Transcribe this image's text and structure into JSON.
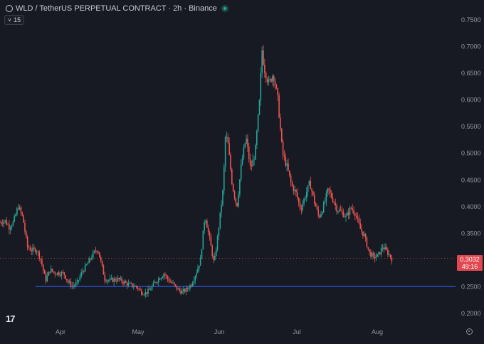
{
  "header": {
    "title": "WLD / TetherUS PERPETUAL CONTRACT · 2h · Binance",
    "indicator_count": "15"
  },
  "price_tag": {
    "price": "0.3032",
    "countdown": "49:16"
  },
  "logo_text": "17",
  "colors": {
    "background": "#171a22",
    "up": "#26a69a",
    "down": "#ef5350",
    "support_line": "#2962ff",
    "last_price": "#e0474f",
    "axis_text": "#9598a1"
  },
  "chart_data": {
    "type": "candlestick",
    "symbol": "WLD / TetherUS PERPETUAL CONTRACT",
    "interval": "2h",
    "exchange": "Binance",
    "x_tick_labels": [
      "Apr",
      "May",
      "Jun",
      "Jul",
      "Aug"
    ],
    "y_tick_labels": [
      "0.2000",
      "0.2500",
      "0.3000",
      "0.3500",
      "0.4000",
      "0.4500",
      "0.5000",
      "0.5500",
      "0.6000",
      "0.6500",
      "0.7000",
      "0.7500"
    ],
    "ylim": [
      0.2,
      0.75
    ],
    "last_price": 0.3032,
    "horizontal_line": 0.2505,
    "grid": false,
    "price_path": [
      {
        "t": 0.0,
        "p": 0.37
      },
      {
        "t": 0.01,
        "p": 0.375
      },
      {
        "t": 0.02,
        "p": 0.362
      },
      {
        "t": 0.03,
        "p": 0.372
      },
      {
        "t": 0.04,
        "p": 0.401
      },
      {
        "t": 0.05,
        "p": 0.38
      },
      {
        "t": 0.06,
        "p": 0.325
      },
      {
        "t": 0.07,
        "p": 0.318
      },
      {
        "t": 0.08,
        "p": 0.32
      },
      {
        "t": 0.09,
        "p": 0.3
      },
      {
        "t": 0.1,
        "p": 0.262
      },
      {
        "t": 0.11,
        "p": 0.282
      },
      {
        "t": 0.12,
        "p": 0.276
      },
      {
        "t": 0.14,
        "p": 0.275
      },
      {
        "t": 0.15,
        "p": 0.258
      },
      {
        "t": 0.16,
        "p": 0.251
      },
      {
        "t": 0.17,
        "p": 0.258
      },
      {
        "t": 0.18,
        "p": 0.278
      },
      {
        "t": 0.19,
        "p": 0.29
      },
      {
        "t": 0.2,
        "p": 0.305
      },
      {
        "t": 0.21,
        "p": 0.318
      },
      {
        "t": 0.215,
        "p": 0.32
      },
      {
        "t": 0.23,
        "p": 0.265
      },
      {
        "t": 0.24,
        "p": 0.262
      },
      {
        "t": 0.26,
        "p": 0.264
      },
      {
        "t": 0.28,
        "p": 0.255
      },
      {
        "t": 0.29,
        "p": 0.252
      },
      {
        "t": 0.3,
        "p": 0.25
      },
      {
        "t": 0.31,
        "p": 0.24
      },
      {
        "t": 0.32,
        "p": 0.238
      },
      {
        "t": 0.33,
        "p": 0.245
      },
      {
        "t": 0.34,
        "p": 0.258
      },
      {
        "t": 0.36,
        "p": 0.275
      },
      {
        "t": 0.37,
        "p": 0.262
      },
      {
        "t": 0.38,
        "p": 0.255
      },
      {
        "t": 0.39,
        "p": 0.245
      },
      {
        "t": 0.4,
        "p": 0.24
      },
      {
        "t": 0.41,
        "p": 0.245
      },
      {
        "t": 0.42,
        "p": 0.255
      },
      {
        "t": 0.43,
        "p": 0.275
      },
      {
        "t": 0.44,
        "p": 0.3
      },
      {
        "t": 0.45,
        "p": 0.385
      },
      {
        "t": 0.46,
        "p": 0.34
      },
      {
        "t": 0.47,
        "p": 0.292
      },
      {
        "t": 0.475,
        "p": 0.325
      },
      {
        "t": 0.48,
        "p": 0.36
      },
      {
        "t": 0.49,
        "p": 0.435
      },
      {
        "t": 0.495,
        "p": 0.535
      },
      {
        "t": 0.5,
        "p": 0.52
      },
      {
        "t": 0.51,
        "p": 0.44
      },
      {
        "t": 0.52,
        "p": 0.4
      },
      {
        "t": 0.53,
        "p": 0.48
      },
      {
        "t": 0.54,
        "p": 0.53
      },
      {
        "t": 0.55,
        "p": 0.47
      },
      {
        "t": 0.56,
        "p": 0.5
      },
      {
        "t": 0.57,
        "p": 0.6
      },
      {
        "t": 0.575,
        "p": 0.695
      },
      {
        "t": 0.58,
        "p": 0.66
      },
      {
        "t": 0.59,
        "p": 0.63
      },
      {
        "t": 0.6,
        "p": 0.65
      },
      {
        "t": 0.61,
        "p": 0.6
      },
      {
        "t": 0.62,
        "p": 0.5
      },
      {
        "t": 0.63,
        "p": 0.475
      },
      {
        "t": 0.64,
        "p": 0.44
      },
      {
        "t": 0.65,
        "p": 0.425
      },
      {
        "t": 0.66,
        "p": 0.395
      },
      {
        "t": 0.67,
        "p": 0.42
      },
      {
        "t": 0.68,
        "p": 0.445
      },
      {
        "t": 0.69,
        "p": 0.41
      },
      {
        "t": 0.7,
        "p": 0.38
      },
      {
        "t": 0.71,
        "p": 0.4
      },
      {
        "t": 0.72,
        "p": 0.432
      },
      {
        "t": 0.73,
        "p": 0.415
      },
      {
        "t": 0.74,
        "p": 0.395
      },
      {
        "t": 0.75,
        "p": 0.39
      },
      {
        "t": 0.76,
        "p": 0.38
      },
      {
        "t": 0.77,
        "p": 0.398
      },
      {
        "t": 0.78,
        "p": 0.388
      },
      {
        "t": 0.79,
        "p": 0.36
      },
      {
        "t": 0.8,
        "p": 0.345
      },
      {
        "t": 0.81,
        "p": 0.315
      },
      {
        "t": 0.82,
        "p": 0.305
      },
      {
        "t": 0.83,
        "p": 0.308
      },
      {
        "t": 0.84,
        "p": 0.325
      },
      {
        "t": 0.85,
        "p": 0.315
      },
      {
        "t": 0.86,
        "p": 0.303
      }
    ]
  }
}
